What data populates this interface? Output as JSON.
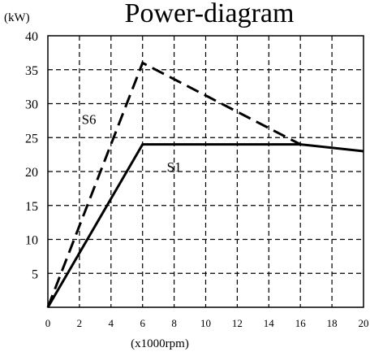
{
  "chart_data": {
    "type": "line",
    "title": "Power-diagram",
    "xlabel": "(x1000rpm)",
    "ylabel": "(kW)",
    "xlim": [
      0,
      20
    ],
    "ylim": [
      0,
      40
    ],
    "x_ticks": [
      "0",
      "2",
      "4",
      "6",
      "8",
      "10",
      "12",
      "14",
      "16",
      "18",
      "20"
    ],
    "y_ticks": [
      "5",
      "10",
      "15",
      "20",
      "25",
      "30",
      "35",
      "40"
    ],
    "grid": true,
    "series": [
      {
        "name": "S6",
        "line_style": "dashed",
        "points": [
          [
            0,
            0
          ],
          [
            6,
            36
          ],
          [
            16,
            24
          ]
        ]
      },
      {
        "name": "S1",
        "line_style": "solid",
        "points": [
          [
            0,
            0
          ],
          [
            6,
            24
          ],
          [
            16,
            24
          ],
          [
            20,
            23
          ]
        ]
      }
    ],
    "colors": {
      "line": "#000000",
      "grid": "#000000",
      "background": "#ffffff"
    }
  }
}
